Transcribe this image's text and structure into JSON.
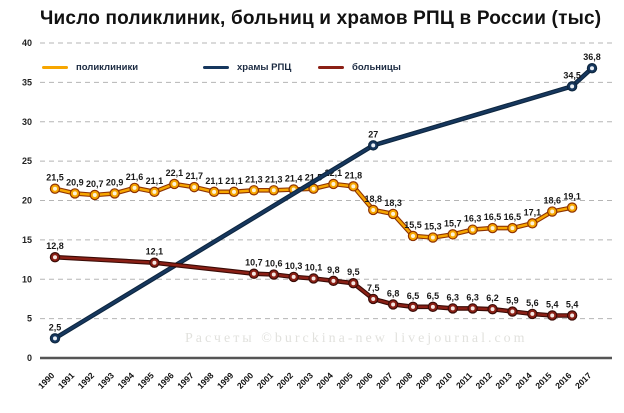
{
  "title": "Число поликлиник, больниц и храмов РПЦ в России (тыс)",
  "watermark": "Расчеты ©burckina-new livejournal.com",
  "chart_data": {
    "type": "line",
    "title": "Число поликлиник, больниц и храмов РПЦ в России (тыс)",
    "xlabel": "",
    "ylabel": "",
    "x": [
      "1990",
      "1991",
      "1992",
      "1993",
      "1994",
      "1995",
      "1996",
      "1997",
      "1998",
      "1999",
      "2000",
      "2001",
      "2002",
      "2003",
      "2004",
      "2005",
      "2006",
      "2007",
      "2008",
      "2009",
      "2010",
      "2011",
      "2012",
      "2013",
      "2014",
      "2015",
      "2016",
      "2017"
    ],
    "ylim": [
      0,
      40
    ],
    "yticks": [
      0,
      5,
      10,
      15,
      20,
      25,
      30,
      35,
      40
    ],
    "grid": true,
    "grid_color": "#b5b5b5",
    "axis_color": "#555555",
    "legend_position": "top-inside",
    "series": [
      {
        "name": "поликлиники",
        "color": "#F7A600",
        "outline": "#8F3300",
        "marker_center": "#FDF3D7",
        "values": [
          21.5,
          20.9,
          20.7,
          20.9,
          21.6,
          21.1,
          22.1,
          21.7,
          21.1,
          21.1,
          21.3,
          21.3,
          21.4,
          21.5,
          22.1,
          21.8,
          18.8,
          18.3,
          15.5,
          15.3,
          15.7,
          16.3,
          16.5,
          16.5,
          17.1,
          18.6,
          19.1,
          null
        ]
      },
      {
        "name": "храмы РПЦ",
        "color": "#16375E",
        "outline": "#0E2740",
        "marker_center": "#EAF0F6",
        "values": [
          2.5,
          null,
          null,
          null,
          null,
          null,
          null,
          null,
          null,
          null,
          null,
          null,
          null,
          null,
          null,
          null,
          27,
          null,
          null,
          null,
          null,
          null,
          null,
          null,
          null,
          null,
          34.5,
          36.8
        ]
      },
      {
        "name": "больницы",
        "color": "#8B2016",
        "outline": "#3A0B06",
        "marker_center": "#F6E7E2",
        "values": [
          12.8,
          null,
          null,
          null,
          null,
          12.1,
          null,
          null,
          null,
          null,
          10.7,
          10.6,
          10.3,
          10.1,
          9.8,
          9.5,
          7.5,
          6.8,
          6.5,
          6.5,
          6.3,
          6.3,
          6.2,
          5.9,
          5.6,
          5.4,
          5.4,
          null
        ]
      }
    ]
  },
  "legend_x_positions": [
    42,
    203,
    318
  ]
}
